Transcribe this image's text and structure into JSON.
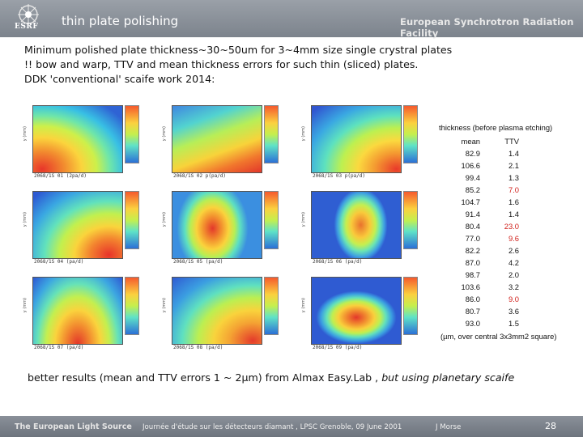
{
  "header": {
    "title": "thin plate polishing",
    "organization": "European Synchrotron Radiation Facility",
    "logo_text": "ESRF"
  },
  "bullets": [
    "Minimum polished plate thickness~30~50um for 3~4mm size single crystral plates",
    "!! bow and warp, TTV and mean thickness errors for such thin (sliced) plates.",
    "DDK 'conventional' scaife work 2014:"
  ],
  "table": {
    "title": "thickness (before plasma etching)",
    "col_mean": "mean",
    "col_ttv": "TTV",
    "rows": [
      {
        "mean": "82.9",
        "ttv": "1.4",
        "ttv_red": false
      },
      {
        "mean": "106.6",
        "ttv": "2.1",
        "ttv_red": false
      },
      {
        "mean": "99.4",
        "ttv": "1.3",
        "ttv_red": false
      },
      {
        "mean": "85.2",
        "ttv": "7.0",
        "ttv_red": true
      },
      {
        "mean": "104.7",
        "ttv": "1.6",
        "ttv_red": false
      },
      {
        "mean": "91.4",
        "ttv": "1.4",
        "ttv_red": false
      },
      {
        "mean": "80.4",
        "ttv": "23.0",
        "ttv_red": true
      },
      {
        "mean": "77.0",
        "ttv": "9.6",
        "ttv_red": true
      },
      {
        "mean": "82.2",
        "ttv": "2.6",
        "ttv_red": false
      },
      {
        "mean": "87.0",
        "ttv": "4.2",
        "ttv_red": false
      },
      {
        "mean": "98.7",
        "ttv": "2.0",
        "ttv_red": false
      },
      {
        "mean": "103.6",
        "ttv": "3.2",
        "ttv_red": false
      },
      {
        "mean": "86.0",
        "ttv": "9.0",
        "ttv_red": true
      },
      {
        "mean": "80.7",
        "ttv": "3.6",
        "ttv_red": false
      },
      {
        "mean": "93.0",
        "ttv": "1.5",
        "ttv_red": false
      }
    ],
    "footnote": "(µm, over central 3x3mm2 square)",
    "red_color": "#d0201b"
  },
  "plots": {
    "captions": [
      "2068/1S 01 (2pa/d)",
      "2068/1S 02 p(pa/d)",
      "2068/1S 03 p(pa/d)",
      "2068/1S 04 (pa/d)",
      "2068/1S 05 (pa/d)",
      "2068/1S 06 (pa/d)",
      "2068/1S 07 (pa/d)",
      "2068/1S 08 (pa/d)",
      "2068/1S 09 (pa/d)"
    ]
  },
  "summary": {
    "plain": "better results (mean and TTV errors 1 ~ 2µm) from Almax Easy.Lab ,",
    "italic": " but using planetary scaife"
  },
  "footer": {
    "left": "The European Light Source",
    "middle": "Journée d'étude sur les détecteurs diamant , LPSC Grenoble, 09 June 2001",
    "author": "J Morse",
    "page": "28"
  }
}
